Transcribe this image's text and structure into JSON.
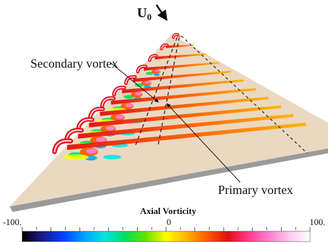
{
  "flow_label": {
    "main": "U",
    "subscript": "0"
  },
  "annotations": {
    "secondary": "Secondary vortex",
    "primary": "Primary vortex"
  },
  "colorbar": {
    "title": "Axial Vorticity",
    "min_label": "-100.",
    "mid_label": "0",
    "max_label": "100.",
    "range": [
      -100,
      100
    ],
    "colormap": [
      "#000000",
      "#1d1a8c",
      "#0040ff",
      "#00a0ff",
      "#00e5e5",
      "#00e060",
      "#66e000",
      "#ffff00",
      "#ffb300",
      "#ff5a00",
      "#e01010",
      "#ff3d8c",
      "#ff7fd0",
      "#ffc8ee",
      "#ffffff"
    ]
  },
  "colors": {
    "surface": "#ead8c0",
    "edge": "#9a9a9a"
  }
}
